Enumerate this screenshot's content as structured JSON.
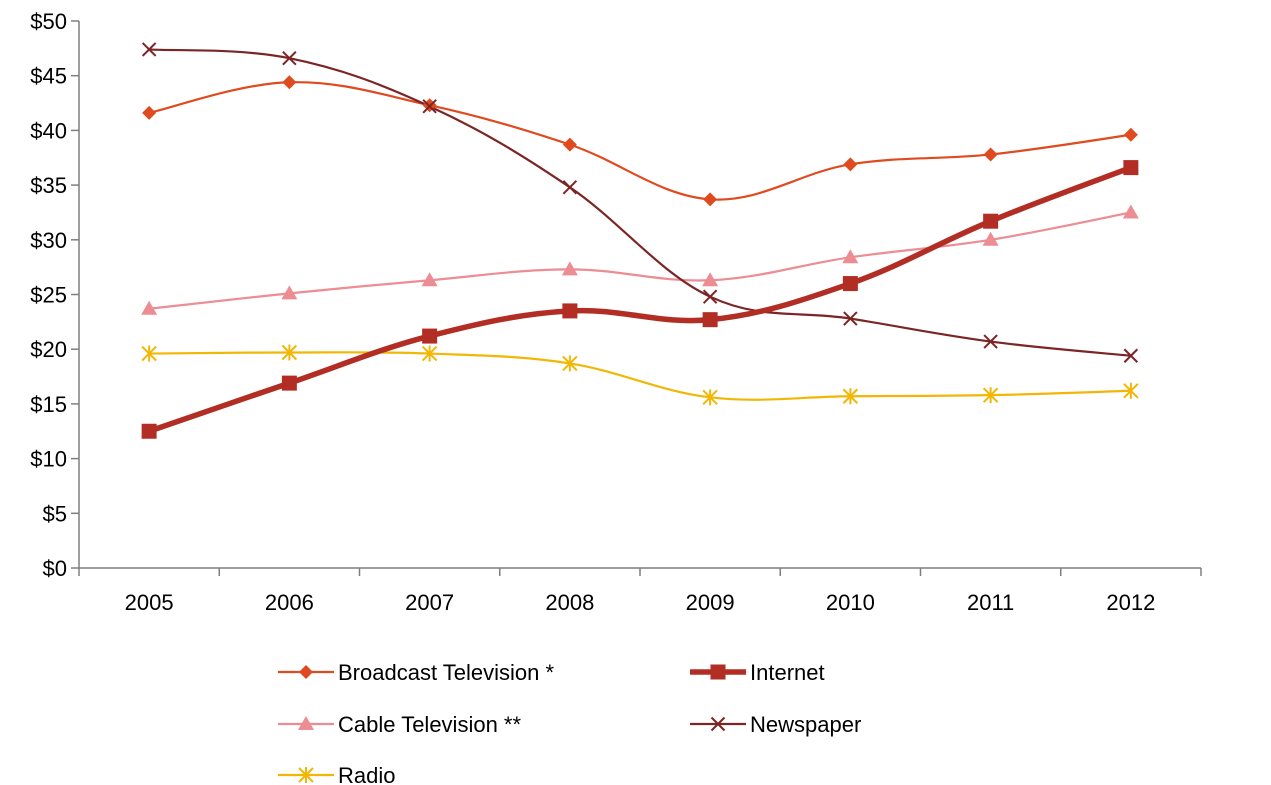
{
  "chart_data": {
    "type": "line",
    "title": "",
    "xlabel": "",
    "ylabel": "",
    "x": [
      "2005",
      "2006",
      "2007",
      "2008",
      "2009",
      "2010",
      "2011",
      "2012"
    ],
    "ylim": [
      0,
      50
    ],
    "y_ticks": [
      "$0",
      "$5",
      "$10",
      "$15",
      "$20",
      "$25",
      "$30",
      "$35",
      "$40",
      "$45",
      "$50"
    ],
    "grid": false,
    "legend_position": "bottom",
    "series": [
      {
        "name": "Broadcast Television *",
        "values": [
          41.6,
          44.4,
          42.3,
          38.7,
          33.7,
          36.9,
          37.8,
          39.6
        ],
        "color": "#e04a1f",
        "marker": "diamond",
        "width": 2.2
      },
      {
        "name": "Internet",
        "values": [
          12.5,
          16.9,
          21.2,
          23.5,
          22.7,
          26.0,
          31.7,
          36.6
        ],
        "color": "#b22e24",
        "marker": "square",
        "width": 5.5
      },
      {
        "name": "Cable Television **",
        "values": [
          23.7,
          25.1,
          26.3,
          27.3,
          26.3,
          28.4,
          30.0,
          32.5
        ],
        "color": "#ec8c93",
        "marker": "triangle",
        "width": 2.2
      },
      {
        "name": "Newspaper",
        "values": [
          47.4,
          46.6,
          42.2,
          34.8,
          24.8,
          22.8,
          20.7,
          19.4
        ],
        "color": "#7b2525",
        "marker": "x",
        "width": 2.2
      },
      {
        "name": "Radio",
        "values": [
          19.6,
          19.7,
          19.6,
          18.7,
          15.6,
          15.7,
          15.8,
          16.2
        ],
        "color": "#f2b705",
        "marker": "star",
        "width": 2.2
      }
    ]
  }
}
